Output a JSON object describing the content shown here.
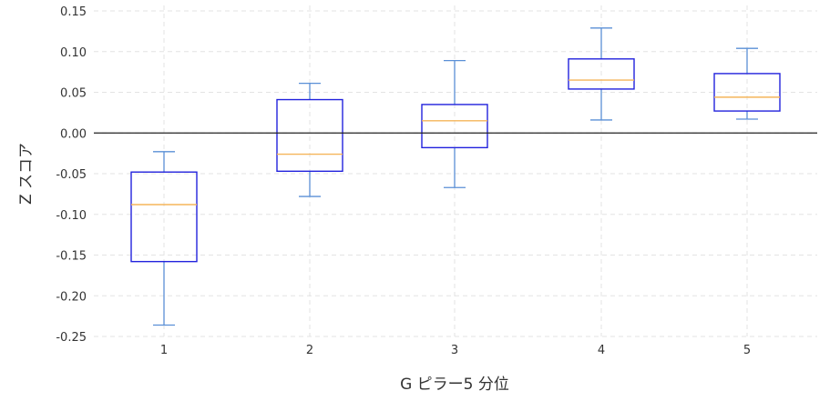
{
  "chart_data": {
    "type": "box",
    "xlabel": "G ピラー5 分位",
    "ylabel": "Z スコア",
    "categories": [
      "1",
      "2",
      "3",
      "4",
      "5"
    ],
    "ylim": [
      -0.25,
      0.15
    ],
    "yticks": [
      "0.15",
      "0.10",
      "0.05",
      "0.00",
      "-0.05",
      "-0.10",
      "-0.15",
      "-0.20",
      "-0.25"
    ],
    "grid": true,
    "reference_line_y": 0.0,
    "boxes": [
      {
        "category": "1",
        "whisker_low": -0.236,
        "q1": -0.158,
        "median": -0.088,
        "q3": -0.048,
        "whisker_high": -0.023
      },
      {
        "category": "2",
        "whisker_low": -0.078,
        "q1": -0.047,
        "median": -0.026,
        "q3": 0.041,
        "whisker_high": 0.061
      },
      {
        "category": "3",
        "whisker_low": -0.067,
        "q1": -0.018,
        "median": 0.015,
        "q3": 0.035,
        "whisker_high": 0.089
      },
      {
        "category": "4",
        "whisker_low": 0.016,
        "q1": 0.054,
        "median": 0.065,
        "q3": 0.091,
        "whisker_high": 0.129
      },
      {
        "category": "5",
        "whisker_low": 0.017,
        "q1": 0.027,
        "median": 0.044,
        "q3": 0.073,
        "whisker_high": 0.104
      }
    ],
    "colors": {
      "box": "#2222dd",
      "whisker": "#5a8fd6",
      "median": "#f5b55a",
      "grid": "#e3e3e3",
      "reference": "#222222",
      "text": "#333333"
    }
  }
}
